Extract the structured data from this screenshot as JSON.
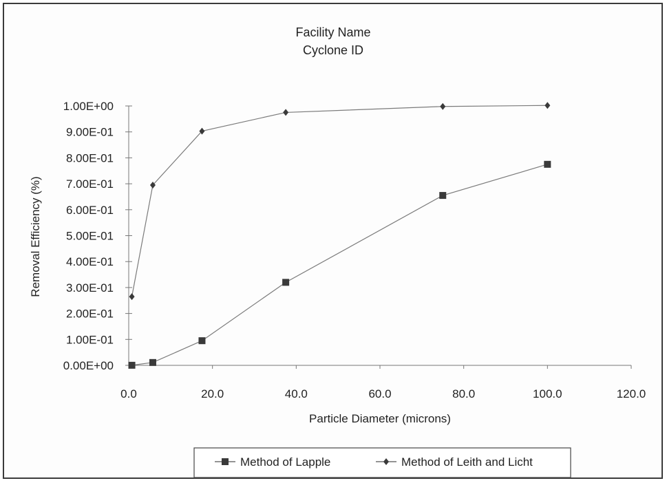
{
  "chart_data": {
    "type": "line",
    "title": [
      "Facility Name",
      "Cyclone ID"
    ],
    "xlabel": "Particle Diameter (microns)",
    "ylabel": "Removal Efficiency (%)",
    "xlim": [
      0,
      120
    ],
    "ylim": [
      0,
      1
    ],
    "x_ticks": [
      "0.0",
      "20.0",
      "40.0",
      "60.0",
      "80.0",
      "100.0",
      "120.0"
    ],
    "y_ticks": [
      "0.00E+00",
      "1.00E-01",
      "2.00E-01",
      "3.00E-01",
      "4.00E-01",
      "5.00E-01",
      "6.00E-01",
      "7.00E-01",
      "8.00E-01",
      "9.00E-01",
      "1.00E+00"
    ],
    "grid": false,
    "legend_position": "bottom",
    "series": [
      {
        "name": "Method of Lapple",
        "marker": "square",
        "color": "#3a3a3a",
        "x": [
          0.75,
          5.75,
          17.5,
          37.5,
          75,
          100
        ],
        "y": [
          0.0003,
          0.011,
          0.095,
          0.32,
          0.655,
          0.775
        ]
      },
      {
        "name": "Method of Leith and Licht",
        "marker": "diamond",
        "color": "#3a3a3a",
        "x": [
          0.75,
          5.75,
          17.5,
          37.5,
          75,
          100
        ],
        "y": [
          0.265,
          0.695,
          0.903,
          0.975,
          0.998,
          1.002
        ]
      }
    ]
  }
}
